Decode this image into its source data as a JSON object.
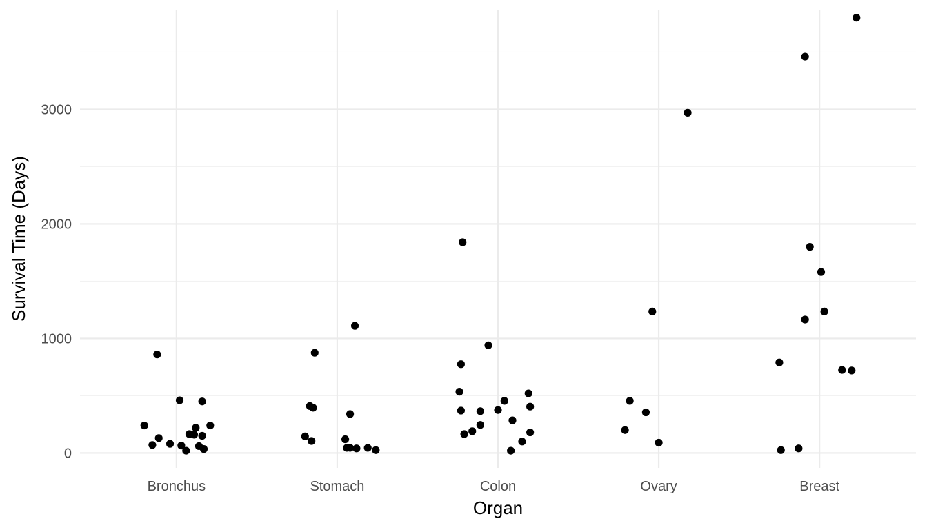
{
  "chart_data": {
    "type": "scatter",
    "xlabel": "Organ",
    "ylabel": "Survival Time (Days)",
    "categories": [
      "Bronchus",
      "Stomach",
      "Colon",
      "Ovary",
      "Breast"
    ],
    "ylim": [
      -130,
      3870
    ],
    "yticks": [
      0,
      1000,
      2000,
      3000
    ],
    "grid": true,
    "legend": "none",
    "point_color": "#000000",
    "points": [
      {
        "cat": "Bronchus",
        "jitter": -0.12,
        "y": 860
      },
      {
        "cat": "Bronchus",
        "jitter": 0.02,
        "y": 460
      },
      {
        "cat": "Bronchus",
        "jitter": 0.16,
        "y": 450
      },
      {
        "cat": "Bronchus",
        "jitter": -0.2,
        "y": 240
      },
      {
        "cat": "Bronchus",
        "jitter": 0.21,
        "y": 240
      },
      {
        "cat": "Bronchus",
        "jitter": 0.12,
        "y": 220
      },
      {
        "cat": "Bronchus",
        "jitter": 0.08,
        "y": 165
      },
      {
        "cat": "Bronchus",
        "jitter": 0.11,
        "y": 160
      },
      {
        "cat": "Bronchus",
        "jitter": 0.16,
        "y": 150
      },
      {
        "cat": "Bronchus",
        "jitter": -0.11,
        "y": 130
      },
      {
        "cat": "Bronchus",
        "jitter": -0.04,
        "y": 80
      },
      {
        "cat": "Bronchus",
        "jitter": -0.15,
        "y": 70
      },
      {
        "cat": "Bronchus",
        "jitter": 0.03,
        "y": 65
      },
      {
        "cat": "Bronchus",
        "jitter": 0.14,
        "y": 60
      },
      {
        "cat": "Bronchus",
        "jitter": 0.17,
        "y": 35
      },
      {
        "cat": "Bronchus",
        "jitter": 0.06,
        "y": 20
      },
      {
        "cat": "Stomach",
        "jitter": 0.11,
        "y": 1110
      },
      {
        "cat": "Stomach",
        "jitter": -0.14,
        "y": 875
      },
      {
        "cat": "Stomach",
        "jitter": -0.17,
        "y": 410
      },
      {
        "cat": "Stomach",
        "jitter": -0.15,
        "y": 395
      },
      {
        "cat": "Stomach",
        "jitter": 0.08,
        "y": 340
      },
      {
        "cat": "Stomach",
        "jitter": -0.2,
        "y": 145
      },
      {
        "cat": "Stomach",
        "jitter": 0.05,
        "y": 120
      },
      {
        "cat": "Stomach",
        "jitter": -0.16,
        "y": 105
      },
      {
        "cat": "Stomach",
        "jitter": 0.06,
        "y": 45
      },
      {
        "cat": "Stomach",
        "jitter": 0.08,
        "y": 45
      },
      {
        "cat": "Stomach",
        "jitter": 0.12,
        "y": 40
      },
      {
        "cat": "Stomach",
        "jitter": 0.19,
        "y": 45
      },
      {
        "cat": "Stomach",
        "jitter": 0.24,
        "y": 25
      },
      {
        "cat": "Colon",
        "jitter": -0.22,
        "y": 1840
      },
      {
        "cat": "Colon",
        "jitter": -0.06,
        "y": 940
      },
      {
        "cat": "Colon",
        "jitter": -0.23,
        "y": 775
      },
      {
        "cat": "Colon",
        "jitter": -0.24,
        "y": 535
      },
      {
        "cat": "Colon",
        "jitter": 0.19,
        "y": 520
      },
      {
        "cat": "Colon",
        "jitter": 0.04,
        "y": 455
      },
      {
        "cat": "Colon",
        "jitter": 0.2,
        "y": 405
      },
      {
        "cat": "Colon",
        "jitter": 0.0,
        "y": 375
      },
      {
        "cat": "Colon",
        "jitter": -0.23,
        "y": 370
      },
      {
        "cat": "Colon",
        "jitter": -0.11,
        "y": 365
      },
      {
        "cat": "Colon",
        "jitter": 0.09,
        "y": 285
      },
      {
        "cat": "Colon",
        "jitter": -0.11,
        "y": 245
      },
      {
        "cat": "Colon",
        "jitter": -0.16,
        "y": 190
      },
      {
        "cat": "Colon",
        "jitter": -0.21,
        "y": 165
      },
      {
        "cat": "Colon",
        "jitter": 0.2,
        "y": 180
      },
      {
        "cat": "Colon",
        "jitter": 0.15,
        "y": 100
      },
      {
        "cat": "Colon",
        "jitter": 0.08,
        "y": 20
      },
      {
        "cat": "Ovary",
        "jitter": 0.18,
        "y": 2970
      },
      {
        "cat": "Ovary",
        "jitter": -0.04,
        "y": 1235
      },
      {
        "cat": "Ovary",
        "jitter": -0.18,
        "y": 455
      },
      {
        "cat": "Ovary",
        "jitter": -0.08,
        "y": 355
      },
      {
        "cat": "Ovary",
        "jitter": -0.21,
        "y": 200
      },
      {
        "cat": "Ovary",
        "jitter": 0.0,
        "y": 90
      },
      {
        "cat": "Breast",
        "jitter": 0.23,
        "y": 3800
      },
      {
        "cat": "Breast",
        "jitter": -0.09,
        "y": 3460
      },
      {
        "cat": "Breast",
        "jitter": -0.06,
        "y": 1800
      },
      {
        "cat": "Breast",
        "jitter": 0.01,
        "y": 1580
      },
      {
        "cat": "Breast",
        "jitter": 0.03,
        "y": 1235
      },
      {
        "cat": "Breast",
        "jitter": -0.09,
        "y": 1165
      },
      {
        "cat": "Breast",
        "jitter": -0.25,
        "y": 790
      },
      {
        "cat": "Breast",
        "jitter": 0.14,
        "y": 725
      },
      {
        "cat": "Breast",
        "jitter": 0.2,
        "y": 720
      },
      {
        "cat": "Breast",
        "jitter": -0.13,
        "y": 40
      },
      {
        "cat": "Breast",
        "jitter": -0.24,
        "y": 25
      }
    ]
  }
}
